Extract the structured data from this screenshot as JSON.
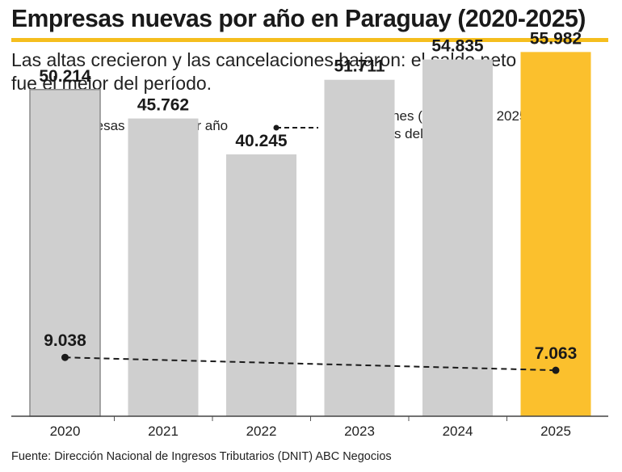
{
  "header": {
    "title": "Empresas nuevas por año en Paraguay (2020-2025)",
    "subtitle_line1": "Las altas crecieron y las cancelaciones bajaron: el saldo neto de 2025",
    "subtitle_line2": "fue el mejor del período."
  },
  "legend": {
    "bars_label": "Empresas creadas por año",
    "line_label_line1": "Cancelaciones (solo 2020 y 2025,",
    "line_label_line2": "únicos datos del informe)"
  },
  "colors": {
    "bar": "#cfcfcf",
    "highlight": "#fbc02d",
    "bar_outline": "#8a8a8a",
    "line": "#1a1a1a"
  },
  "chart_data": {
    "type": "bar",
    "title": "Empresas nuevas por año en Paraguay (2020-2025)",
    "categories": [
      "2020",
      "2021",
      "2022",
      "2023",
      "2024",
      "2025"
    ],
    "series": [
      {
        "name": "Empresas creadas por año",
        "values": [
          50214,
          45762,
          40245,
          51711,
          54835,
          55982
        ],
        "labels": [
          "50.214",
          "45.762",
          "40.245",
          "51.711",
          "54.835",
          "55.982"
        ],
        "highlight_index": 5
      },
      {
        "name": "Cancelaciones (solo 2020 y 2025, únicos datos del informe)",
        "type": "line",
        "style": "dashed",
        "points": [
          {
            "x": "2020",
            "y": 9038,
            "label": "9.038"
          },
          {
            "x": "2025",
            "y": 7063,
            "label": "7.063"
          }
        ]
      }
    ],
    "ylim": [
      0,
      60000
    ],
    "grid": false,
    "legend_position": "top-left"
  },
  "footer": {
    "source": "Fuente: Dirección Nacional de Ingresos Tributarios (DNIT) ABC Negocios"
  }
}
